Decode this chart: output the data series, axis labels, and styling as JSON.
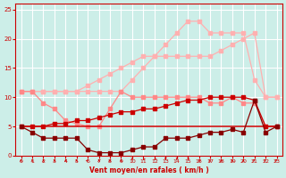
{
  "x": [
    0,
    1,
    2,
    3,
    4,
    5,
    6,
    7,
    8,
    9,
    10,
    11,
    12,
    13,
    14,
    15,
    16,
    17,
    18,
    19,
    20,
    21,
    22,
    23
  ],
  "line_pink1": [
    11,
    11,
    11,
    11,
    11,
    11,
    11,
    11,
    11,
    11,
    13,
    15,
    17,
    19,
    21,
    23,
    23,
    21,
    21,
    21,
    21,
    13,
    10,
    10
  ],
  "line_pink2": [
    11,
    11,
    11,
    11,
    11,
    11,
    12,
    13,
    14,
    15,
    16,
    17,
    17,
    17,
    17,
    17,
    17,
    17,
    18,
    19,
    20,
    21,
    10,
    10
  ],
  "line_pinkwave": [
    11,
    11,
    9,
    8,
    6,
    5.5,
    5,
    5,
    8,
    11,
    10,
    10,
    10,
    10,
    10,
    10,
    10,
    9,
    9,
    10,
    9,
    9,
    5,
    5
  ],
  "line_red_flat": [
    5,
    5,
    5,
    5,
    5,
    5,
    5,
    5,
    5,
    5,
    5,
    5,
    5,
    5,
    5,
    5,
    5,
    5,
    5,
    5,
    5,
    5,
    5,
    5
  ],
  "line_red_inc": [
    5,
    5,
    5,
    5.5,
    5.5,
    6,
    6,
    6.5,
    7,
    7.5,
    7.5,
    8,
    8,
    8.5,
    9,
    9.5,
    9.5,
    10,
    10,
    10,
    10,
    9.5,
    5,
    5
  ],
  "line_dark_dec": [
    5,
    4,
    3,
    3,
    3,
    3,
    1,
    0.5,
    0.5,
    0.5,
    1,
    1.5,
    1.5,
    3,
    3,
    3,
    3.5,
    4,
    4,
    4.5,
    4,
    9.5,
    4,
    5
  ],
  "colors": {
    "line_pink1": "#FFB0B0",
    "line_pink2": "#FFB0B0",
    "line_pinkwave": "#FF8888",
    "line_red_flat": "#CC0000",
    "line_red_inc": "#CC0000",
    "line_dark_dec": "#880000"
  },
  "bg_color": "#CCEEE8",
  "grid_color": "#FFFFFF",
  "axis_color": "#CC0000",
  "xlabel": "Vent moyen/en rafales ( km/h )",
  "xlim": [
    -0.5,
    23.5
  ],
  "ylim": [
    0,
    26
  ],
  "yticks": [
    0,
    5,
    10,
    15,
    20,
    25
  ],
  "xticks": [
    0,
    1,
    2,
    3,
    4,
    5,
    6,
    7,
    8,
    9,
    10,
    11,
    12,
    13,
    14,
    15,
    16,
    17,
    18,
    19,
    20,
    21,
    22,
    23
  ]
}
